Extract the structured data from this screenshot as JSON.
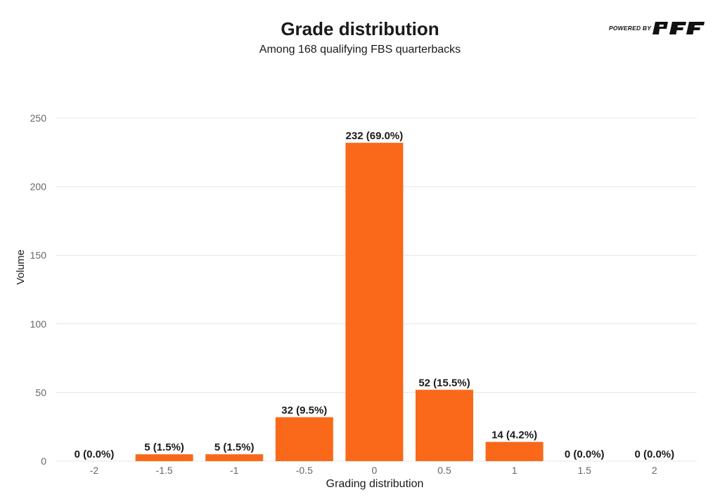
{
  "header": {
    "title": "Grade distribution",
    "subtitle": "Among 168 qualifying FBS quarterbacks",
    "logo_text": "POWERED BY",
    "logo_brand": "PFF"
  },
  "colors": {
    "bar": "#fa6819",
    "grid": "#e6e6e6",
    "text": "#1a1a1a",
    "tick": "#666666"
  },
  "chart_data": {
    "type": "bar",
    "title": "Grade distribution",
    "subtitle": "Among 168 qualifying FBS quarterbacks",
    "xlabel": "Grading distribution",
    "ylabel": "Volume",
    "ylim": [
      0,
      250
    ],
    "yticks": [
      "0",
      "50",
      "100",
      "150",
      "200",
      "250"
    ],
    "ytick_values": [
      0,
      50,
      100,
      150,
      200,
      250
    ],
    "grid": true,
    "categories": [
      "-2",
      "-1.5",
      "-1",
      "-0.5",
      "0",
      "0.5",
      "1",
      "1.5",
      "2"
    ],
    "values": [
      0,
      5,
      5,
      32,
      232,
      52,
      14,
      0,
      0
    ],
    "labels": [
      "0 (0.0%)",
      "5 (1.5%)",
      "5 (1.5%)",
      "32 (9.5%)",
      "232 (69.0%)",
      "52 (15.5%)",
      "14 (4.2%)",
      "0 (0.0%)",
      "0 (0.0%)"
    ]
  }
}
